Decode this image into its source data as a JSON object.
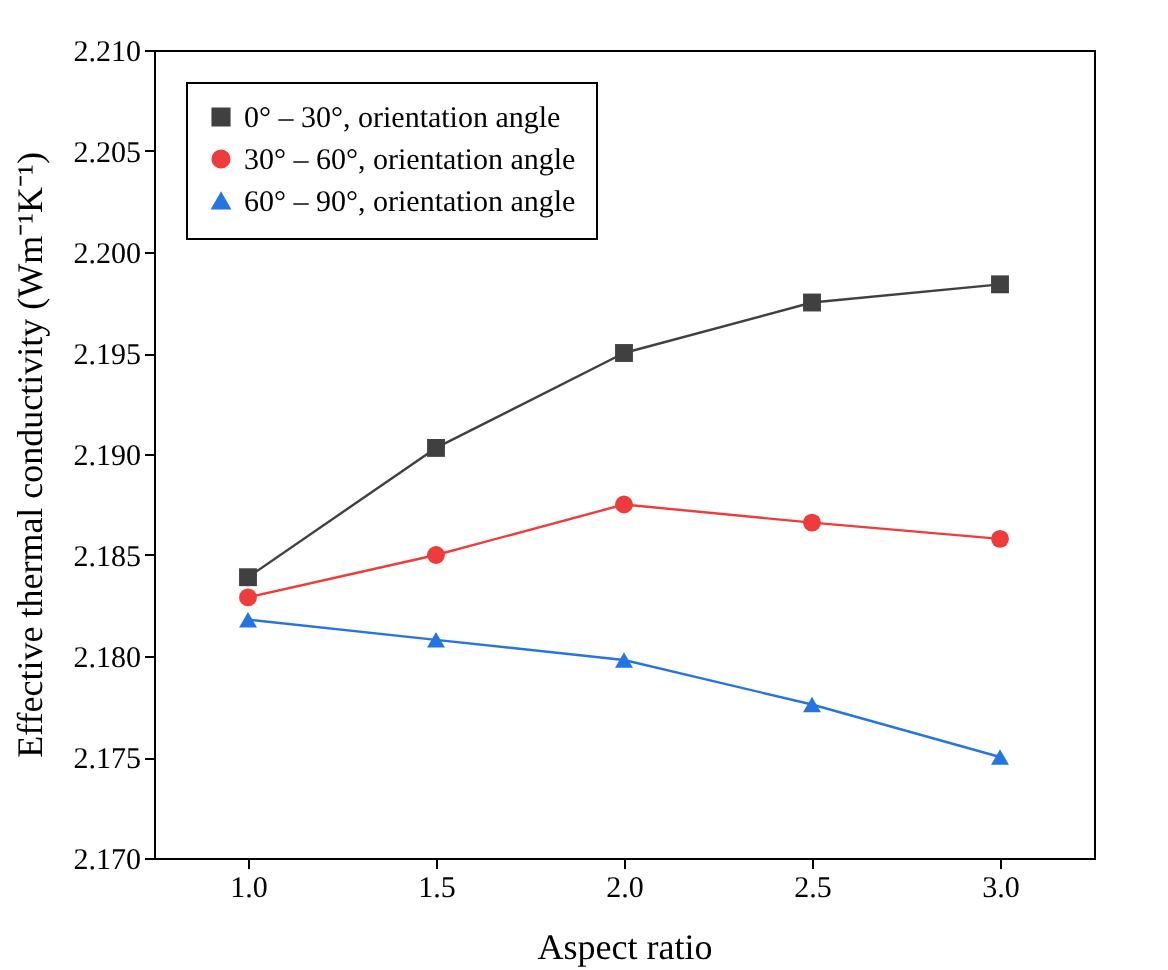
{
  "chart_data": {
    "type": "line",
    "xlabel": "Aspect ratio",
    "ylabel": "Effective thermal conductivity (Wm⁻¹K⁻¹)",
    "x": [
      1.0,
      1.5,
      2.0,
      2.5,
      3.0
    ],
    "series": [
      {
        "name": "0° – 30°, orientation angle",
        "color": "#404040",
        "marker": "square",
        "values": [
          2.1839,
          2.1903,
          2.195,
          2.1975,
          2.1984
        ]
      },
      {
        "name": "30° – 60°, orientation angle",
        "color": "#ee3b3b",
        "marker": "circle",
        "values": [
          2.1829,
          2.185,
          2.1875,
          2.1866,
          2.1858
        ]
      },
      {
        "name": "60° – 90°, orientation angle",
        "color": "#2475e0",
        "marker": "triangle",
        "values": [
          2.1818,
          2.1808,
          2.1798,
          2.1776,
          2.175
        ]
      }
    ],
    "xlim": [
      0.75,
      3.25
    ],
    "xticks": [
      {
        "value": 1,
        "label": "1.0"
      },
      {
        "value": 1.5,
        "label": "1.5"
      },
      {
        "value": 2,
        "label": "2.0"
      },
      {
        "value": 2.5,
        "label": "2.5"
      },
      {
        "value": 3,
        "label": "3.0"
      }
    ],
    "ylim": [
      2.17,
      2.21
    ],
    "yticks": [
      {
        "value": 2.17,
        "label": "2.170"
      },
      {
        "value": 2.175,
        "label": "2.175"
      },
      {
        "value": 2.18,
        "label": "2.180"
      },
      {
        "value": 2.185,
        "label": "2.185"
      },
      {
        "value": 2.19,
        "label": "2.190"
      },
      {
        "value": 2.195,
        "label": "2.195"
      },
      {
        "value": 2.2,
        "label": "2.200"
      },
      {
        "value": 2.205,
        "label": "2.205"
      },
      {
        "value": 2.21,
        "label": "2.210"
      }
    ],
    "grid": false,
    "legend": "top left",
    "line_style": "solid"
  }
}
